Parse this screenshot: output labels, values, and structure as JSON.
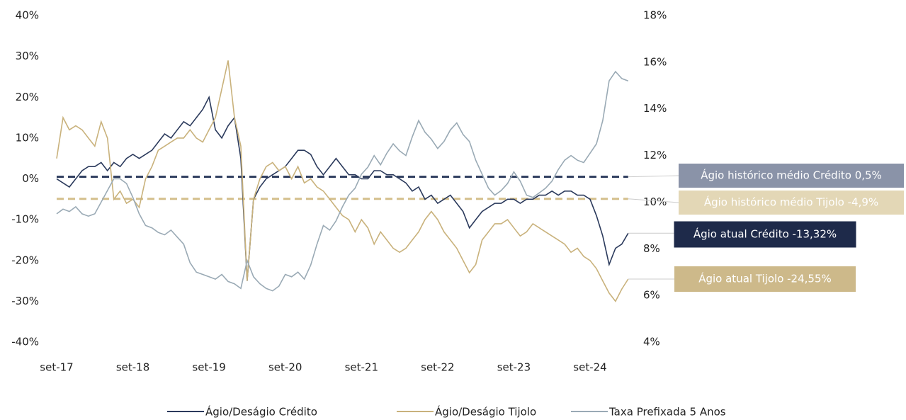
{
  "chart_data": {
    "type": "line",
    "categories": [
      "set-17",
      null,
      null,
      null,
      null,
      null,
      null,
      null,
      null,
      null,
      null,
      null,
      "set-18",
      null,
      null,
      null,
      null,
      null,
      null,
      null,
      null,
      null,
      null,
      null,
      "set-19",
      null,
      null,
      null,
      null,
      null,
      null,
      null,
      null,
      null,
      null,
      null,
      "set-20",
      null,
      null,
      null,
      null,
      null,
      null,
      null,
      null,
      null,
      null,
      null,
      "set-21",
      null,
      null,
      null,
      null,
      null,
      null,
      null,
      null,
      null,
      null,
      null,
      "set-22",
      null,
      null,
      null,
      null,
      null,
      null,
      null,
      null,
      null,
      null,
      null,
      "set-23",
      null,
      null,
      null,
      null,
      null,
      null,
      null,
      null,
      null,
      null,
      null,
      "set-24",
      null,
      null,
      null,
      null,
      null,
      null
    ],
    "series": [
      {
        "name": "Ágio/Deságio Crédito",
        "color": "#2b3a5c",
        "values": [
          0,
          -1,
          -2,
          0,
          2,
          3,
          3,
          4,
          2,
          4,
          3,
          5,
          6,
          5,
          6,
          7,
          9,
          11,
          10,
          12,
          14,
          13,
          15,
          17,
          20,
          12,
          10,
          13,
          15,
          5,
          -25,
          -5,
          -2,
          0,
          1,
          2,
          3,
          5,
          7,
          7,
          6,
          3,
          1,
          3,
          5,
          3,
          1,
          1,
          0,
          0,
          2,
          2,
          1,
          1,
          0,
          -1,
          -3,
          -2,
          -5,
          -4,
          -6,
          -5,
          -4,
          -6,
          -8,
          -12,
          -10,
          -8,
          -7,
          -6,
          -6,
          -5,
          -5,
          -6,
          -5,
          -5,
          -4,
          -4,
          -3,
          -4,
          -3,
          -3,
          -4,
          -4,
          -5,
          -9,
          -14,
          -21,
          -17,
          -16,
          -13.32
        ]
      },
      {
        "name": "Ágio/Deságio Tijolo",
        "color": "#c9b27c",
        "values": [
          5,
          15,
          12,
          13,
          12,
          10,
          8,
          14,
          10,
          -5,
          -3,
          -6,
          -5,
          -7,
          0,
          3,
          7,
          8,
          9,
          10,
          10,
          12,
          10,
          9,
          12,
          15,
          22,
          29,
          15,
          8,
          -25,
          -5,
          0,
          3,
          4,
          2,
          3,
          0,
          3,
          -1,
          0,
          -2,
          -3,
          -5,
          -7,
          -9,
          -10,
          -13,
          -10,
          -12,
          -16,
          -13,
          -15,
          -17,
          -18,
          -17,
          -15,
          -13,
          -10,
          -8,
          -10,
          -13,
          -15,
          -17,
          -20,
          -23,
          -21,
          -15,
          -13,
          -11,
          -11,
          -10,
          -12,
          -14,
          -13,
          -11,
          -12,
          -13,
          -14,
          -15,
          -16,
          -18,
          -17,
          -19,
          -20,
          -22,
          -25,
          -28,
          -30,
          -27,
          -24.55
        ]
      },
      {
        "name": "Taxa Prefixada 5 Anos",
        "color": "#9aaab5",
        "axis": "y2",
        "values": [
          9.5,
          9.7,
          9.6,
          9.8,
          9.5,
          9.4,
          9.5,
          10.0,
          10.5,
          11.0,
          11.0,
          10.8,
          10.2,
          9.5,
          9.0,
          8.9,
          8.7,
          8.6,
          8.8,
          8.5,
          8.2,
          7.4,
          7.0,
          6.9,
          6.8,
          6.7,
          6.9,
          6.6,
          6.5,
          6.3,
          7.5,
          6.8,
          6.5,
          6.3,
          6.2,
          6.4,
          6.9,
          6.8,
          7.0,
          6.7,
          7.3,
          8.2,
          9.0,
          8.8,
          9.2,
          9.8,
          10.3,
          10.6,
          11.2,
          11.5,
          12.0,
          11.6,
          12.1,
          12.5,
          12.2,
          12.0,
          12.8,
          13.5,
          13.0,
          12.7,
          12.3,
          12.6,
          13.1,
          13.4,
          12.9,
          12.6,
          11.8,
          11.2,
          10.6,
          10.3,
          10.5,
          10.8,
          11.3,
          10.9,
          10.3,
          10.2,
          10.4,
          10.6,
          10.9,
          11.4,
          11.8,
          12.0,
          11.8,
          11.7,
          12.1,
          12.5,
          13.5,
          15.2,
          15.6,
          15.3,
          15.2
        ]
      }
    ],
    "ylim": [
      -40,
      40
    ],
    "yticks": [
      {
        "value": -40,
        "label": "-40%"
      },
      {
        "value": -30,
        "label": "-30%"
      },
      {
        "value": -20,
        "label": "-20%"
      },
      {
        "value": -10,
        "label": "-10%"
      },
      {
        "value": 0,
        "label": "0%"
      },
      {
        "value": 10,
        "label": "10%"
      },
      {
        "value": 20,
        "label": "20%"
      },
      {
        "value": 30,
        "label": "30%"
      },
      {
        "value": 40,
        "label": "40%"
      }
    ],
    "y2lim": [
      4,
      18
    ],
    "y2ticks": [
      {
        "value": 4,
        "label": "4%"
      },
      {
        "value": 6,
        "label": "6%"
      },
      {
        "value": 8,
        "label": "8%"
      },
      {
        "value": 10,
        "label": "10%"
      },
      {
        "value": 12,
        "label": "12%"
      },
      {
        "value": 14,
        "label": "14%"
      },
      {
        "value": 16,
        "label": "16%"
      },
      {
        "value": 18,
        "label": "18%"
      }
    ],
    "reference_lines": [
      {
        "label": "Ágio histórico médio Crédito 0,5%",
        "value": 0.5,
        "color": "#2b3a5c",
        "box_color": "#8a93a8"
      },
      {
        "label": "Ágio histórico médio Tijolo -4,9%",
        "value": -4.9,
        "color": "#d4bf8c",
        "box_color": "#e3d7b6"
      }
    ],
    "annotations": [
      {
        "label": "Ágio atual Crédito -13,32%",
        "box_color": "#1e2a4a"
      },
      {
        "label": "Ágio atual Tijolo -24,55%",
        "box_color": "#cdb98a"
      }
    ],
    "legend": "bottom"
  }
}
